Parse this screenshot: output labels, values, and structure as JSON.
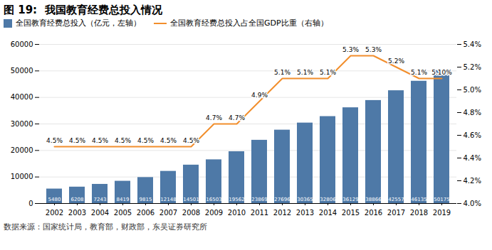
{
  "chart_data": {
    "type": "bar",
    "title": "图 19:  我国教育经费总投入情况",
    "categories": [
      "2002",
      "2003",
      "2004",
      "2005",
      "2006",
      "2007",
      "2008",
      "2009",
      "2010",
      "2011",
      "2012",
      "2013",
      "2014",
      "2015",
      "2016",
      "2017",
      "2018",
      "2019"
    ],
    "series": [
      {
        "name": "全国教育经费总投入（亿元，左轴）",
        "type": "bar",
        "values": [
          5480,
          6208,
          7243,
          8419,
          9815,
          12148,
          14501,
          16503,
          19562,
          23869,
          27696,
          30365,
          32806,
          36129,
          38866,
          42557,
          46135,
          50175
        ]
      },
      {
        "name": "全国教育经费总投入占全国GDP比重（右轴）",
        "type": "line",
        "axis": "y2",
        "values": [
          4.5,
          4.5,
          4.5,
          4.5,
          4.5,
          4.5,
          4.5,
          4.7,
          4.7,
          4.9,
          5.1,
          5.1,
          5.1,
          5.3,
          5.3,
          5.2,
          5.1,
          5.1
        ],
        "value_labels": [
          "4.5%",
          "4.5%",
          "4.5%",
          "4.5%",
          "4.5%",
          "4.5%",
          "4.5%",
          "4.7%",
          "4.7%",
          "4.9%",
          "5.1%",
          "5.1%",
          "5.1%",
          "5.3%",
          "5.3%",
          "5.2%",
          "5.1%",
          "5.10%"
        ]
      }
    ],
    "ylim": [
      0,
      60000
    ],
    "yticks": [
      0,
      10000,
      20000,
      30000,
      40000,
      50000,
      60000
    ],
    "y2lim": [
      4.0,
      5.4
    ],
    "y2ticks": [
      {
        "value": 4.0,
        "label": "4.0%"
      },
      {
        "value": 4.2,
        "label": "4.2%"
      },
      {
        "value": 4.4,
        "label": "4.4%"
      },
      {
        "value": 4.6,
        "label": "4.6%"
      },
      {
        "value": 4.8,
        "label": "4.8%"
      },
      {
        "value": 5.0,
        "label": "5.0%"
      },
      {
        "value": 5.2,
        "label": "5.2%"
      },
      {
        "value": 5.4,
        "label": "5.4%"
      }
    ],
    "annotations": [
      "数据来源：国家统计局，教育部，财政部，东吴证券研究所"
    ],
    "grid": true,
    "legend": "upper left",
    "data_labels": true
  }
}
